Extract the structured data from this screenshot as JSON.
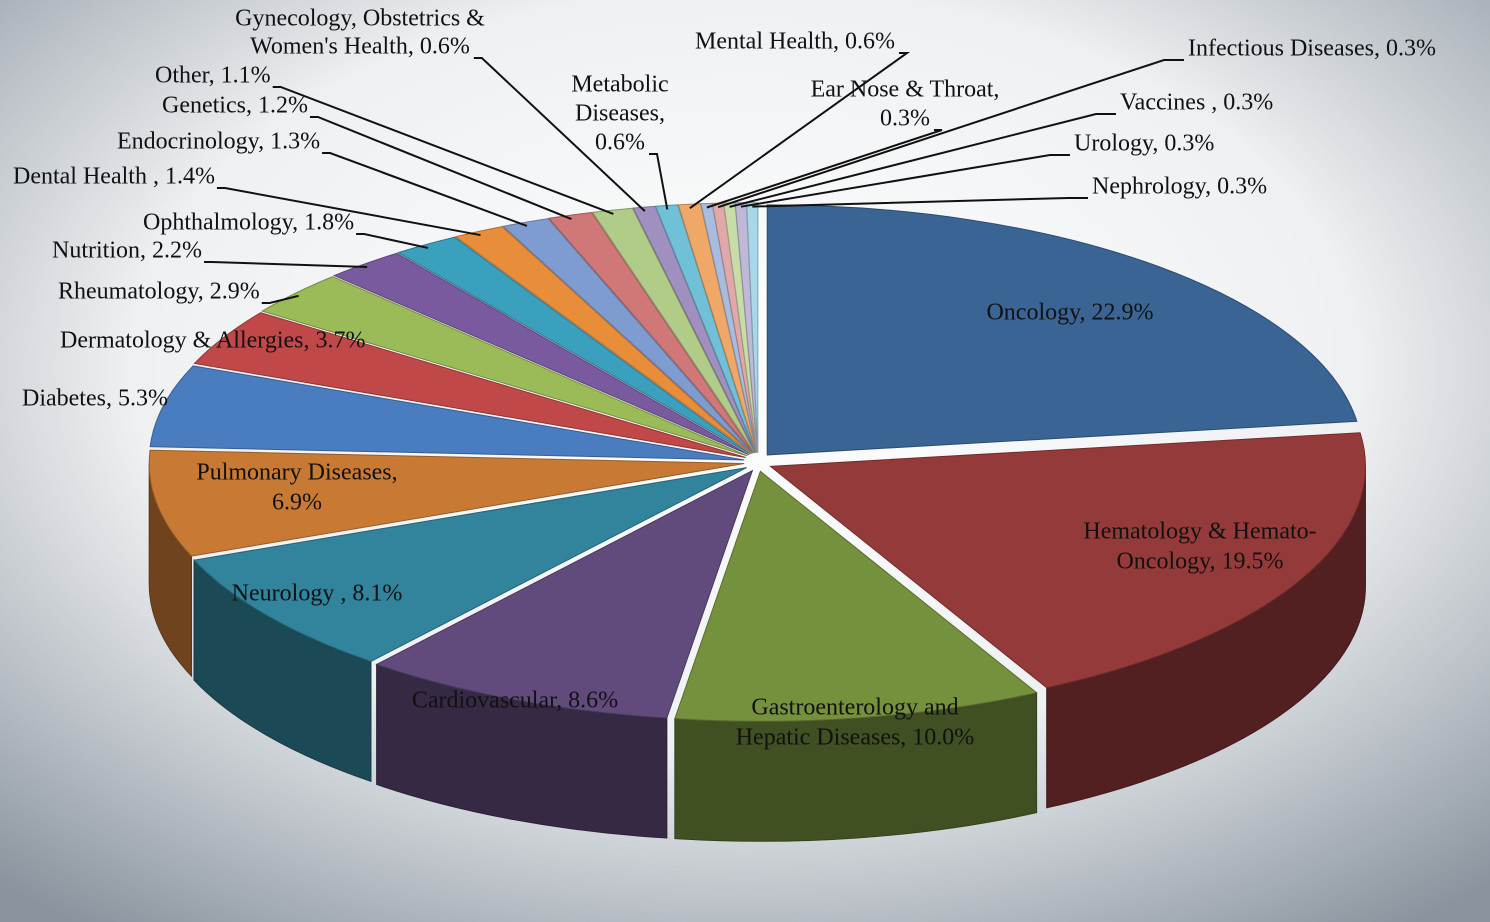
{
  "chart_data": {
    "type": "pie3d",
    "labels": [
      [
        "Oncology, 22.9%"
      ],
      [
        "Hematology & Hemato-",
        "Oncology, 19.5%"
      ],
      [
        "Gastroenterology and",
        "Hepatic Diseases, 10.0%"
      ],
      [
        "Cardiovascular, 8.6%"
      ],
      [
        "Neurology , 8.1%"
      ],
      [
        "Pulmonary Diseases,",
        "6.9%"
      ],
      [
        "Diabetes, 5.3%"
      ],
      [
        "Dermatology & Allergies, 3.7%"
      ],
      [
        "Rheumatology, 2.9%"
      ],
      [
        "Nutrition, 2.2%"
      ],
      [
        "Ophthalmology, 1.8%"
      ],
      [
        "Dental Health , 1.4%"
      ],
      [
        "Endocrinology, 1.3%"
      ],
      [
        "Genetics, 1.2%"
      ],
      [
        "Other, 1.1%"
      ],
      [
        "Gynecology,  Obstetrics &",
        "Women's Health, 0.6%"
      ],
      [
        "Metabolic",
        "Diseases,",
        "0.6%"
      ],
      [
        "Mental Health, 0.6%"
      ],
      [
        "Ear Nose & Throat,",
        "0.3%"
      ],
      [
        "Infectious Diseases, 0.3%"
      ],
      [
        "Vaccines , 0.3%"
      ],
      [
        "Urology, 0.3%"
      ],
      [
        "Nephrology, 0.3%"
      ]
    ],
    "values": [
      22.9,
      19.5,
      10.0,
      8.6,
      8.1,
      6.9,
      5.3,
      3.7,
      2.9,
      2.2,
      1.8,
      1.4,
      1.3,
      1.2,
      1.1,
      0.6,
      0.6,
      0.6,
      0.3,
      0.3,
      0.3,
      0.3,
      0.3
    ],
    "colors": [
      "#3a6494",
      "#953a3a",
      "#76913d",
      "#614b7c",
      "#31849b",
      "#c87a34",
      "#4a7cc0",
      "#c04848",
      "#9bbb59",
      "#7a5a9e",
      "#3aa0bd",
      "#e88d3a",
      "#7e9cd0",
      "#d07878",
      "#b0cc88",
      "#a090c0",
      "#70c0d8",
      "#f0a868",
      "#a8bce0",
      "#e0a8a8",
      "#c8dca8",
      "#c0b8d8",
      "#a8d8e8"
    ]
  }
}
